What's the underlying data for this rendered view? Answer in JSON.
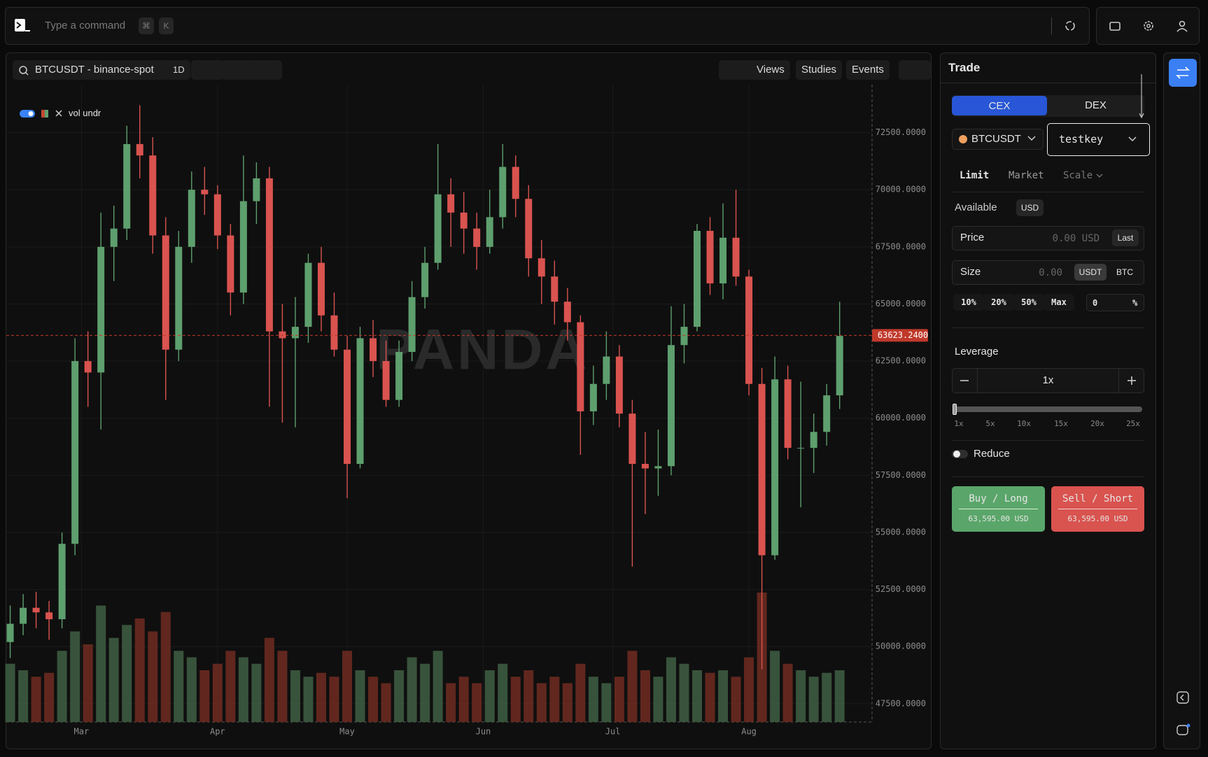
{
  "topbar": {
    "placeholder": "Type a command",
    "shortcut": [
      "⌘",
      "K"
    ]
  },
  "chart_data": {
    "type": "candlestick",
    "symbol": "BTCUSDT - binance-spot",
    "interval": "1D",
    "toolbar": [
      "Views",
      "Studies",
      "Events"
    ],
    "legend": "vol undr",
    "watermark": "PANDA",
    "up_color": "#5e9f6e",
    "down_color": "#d9534f",
    "volume_up_color": "#3d5b40",
    "volume_down_color": "#6a2a20",
    "grid": true,
    "ylim": [
      46700,
      74600
    ],
    "yticks": [
      {
        "value": 47500,
        "label": "47500.0000"
      },
      {
        "value": 50000,
        "label": "50000.0000"
      },
      {
        "value": 52500,
        "label": "52500.0000"
      },
      {
        "value": 55000,
        "label": "55000.0000"
      },
      {
        "value": 57500,
        "label": "57500.0000"
      },
      {
        "value": 60000,
        "label": "60000.0000"
      },
      {
        "value": 62500,
        "label": "62500.0000"
      },
      {
        "value": 65000,
        "label": "65000.0000"
      },
      {
        "value": 67500,
        "label": "67500.0000"
      },
      {
        "value": 70000,
        "label": "70000.0000"
      },
      {
        "value": 72500,
        "label": "72500.0000"
      }
    ],
    "xlim": [
      -0.3,
      66.5
    ],
    "xticks": [
      {
        "value": 5.5,
        "label": "Mar"
      },
      {
        "value": 16,
        "label": "Apr"
      },
      {
        "value": 26,
        "label": "May"
      },
      {
        "value": 36.5,
        "label": "Jun"
      },
      {
        "value": 46.5,
        "label": "Jul"
      },
      {
        "value": 57,
        "label": "Aug"
      }
    ],
    "price_line": {
      "value": 63623.24,
      "label": "63623.2400"
    },
    "candles": [
      [
        50200,
        51800,
        49500,
        51000
      ],
      [
        51000,
        52300,
        50500,
        51700
      ],
      [
        51700,
        52400,
        50800,
        51500
      ],
      [
        51500,
        52000,
        50300,
        51200
      ],
      [
        51200,
        55000,
        50800,
        54500
      ],
      [
        54500,
        63500,
        54000,
        62500
      ],
      [
        62500,
        63800,
        60500,
        62000
      ],
      [
        62000,
        69000,
        59500,
        67500
      ],
      [
        67500,
        69300,
        66000,
        68300
      ],
      [
        68300,
        72800,
        67800,
        72000
      ],
      [
        72000,
        73700,
        70500,
        71500
      ],
      [
        71500,
        72300,
        67200,
        68000
      ],
      [
        68000,
        68800,
        60800,
        63000
      ],
      [
        63000,
        68200,
        62500,
        67500
      ],
      [
        67500,
        70800,
        66800,
        70000
      ],
      [
        70000,
        71000,
        68900,
        69800
      ],
      [
        69800,
        70200,
        67400,
        68000
      ],
      [
        68000,
        68500,
        64500,
        65500
      ],
      [
        65500,
        71500,
        65000,
        69500
      ],
      [
        69500,
        71200,
        68500,
        70500
      ],
      [
        70500,
        71000,
        60500,
        63800
      ],
      [
        63800,
        65000,
        59800,
        63500
      ],
      [
        63500,
        65300,
        59600,
        64000
      ],
      [
        64000,
        67200,
        63300,
        66800
      ],
      [
        66800,
        67500,
        63800,
        64500
      ],
      [
        64500,
        65500,
        62700,
        63000
      ],
      [
        63000,
        63600,
        56500,
        58000
      ],
      [
        58000,
        64000,
        57800,
        63500
      ],
      [
        63500,
        64300,
        61800,
        62500
      ],
      [
        62500,
        63400,
        60500,
        60800
      ],
      [
        60800,
        63400,
        60500,
        62900
      ],
      [
        62900,
        66000,
        62500,
        65300
      ],
      [
        65300,
        67500,
        64800,
        66800
      ],
      [
        66800,
        72000,
        66500,
        69800
      ],
      [
        69800,
        70500,
        67500,
        69000
      ],
      [
        69000,
        69900,
        67200,
        68300
      ],
      [
        68300,
        69000,
        66500,
        67500
      ],
      [
        67500,
        70000,
        67200,
        68800
      ],
      [
        68800,
        72000,
        68300,
        71000
      ],
      [
        71000,
        71500,
        68800,
        69600
      ],
      [
        69600,
        70200,
        66200,
        67000
      ],
      [
        67000,
        67800,
        65000,
        66200
      ],
      [
        66200,
        66900,
        64100,
        65100
      ],
      [
        65100,
        65700,
        63400,
        64200
      ],
      [
        64200,
        64500,
        58400,
        60300
      ],
      [
        60300,
        62300,
        59700,
        61500
      ],
      [
        61500,
        63800,
        60800,
        62700
      ],
      [
        62700,
        63200,
        59600,
        60200
      ],
      [
        60200,
        60800,
        53500,
        58000
      ],
      [
        58000,
        59400,
        55800,
        57800
      ],
      [
        57800,
        59500,
        56600,
        57900
      ],
      [
        57900,
        64900,
        57500,
        63200
      ],
      [
        63200,
        65000,
        62400,
        64000
      ],
      [
        64000,
        68500,
        63800,
        68200
      ],
      [
        68200,
        68800,
        65400,
        65900
      ],
      [
        65900,
        69400,
        65200,
        67900
      ],
      [
        67900,
        70000,
        65800,
        66200
      ],
      [
        66200,
        66500,
        61000,
        61500
      ],
      [
        61500,
        62200,
        49000,
        54000
      ],
      [
        54000,
        62700,
        53800,
        61700
      ],
      [
        61700,
        62300,
        58200,
        58700
      ],
      [
        58700,
        61600,
        56100,
        58700
      ],
      [
        58700,
        60200,
        57600,
        59400
      ],
      [
        59400,
        61500,
        58800,
        61000
      ],
      [
        61000,
        65100,
        60400,
        63600
      ]
    ],
    "volume": [
      45,
      40,
      35,
      38,
      55,
      70,
      60,
      90,
      65,
      75,
      80,
      70,
      85,
      55,
      50,
      40,
      45,
      55,
      50,
      45,
      65,
      55,
      40,
      35,
      38,
      35,
      55,
      40,
      35,
      30,
      40,
      50,
      45,
      55,
      30,
      35,
      30,
      40,
      45,
      35,
      40,
      30,
      35,
      30,
      45,
      35,
      30,
      35,
      55,
      40,
      35,
      50,
      45,
      40,
      38,
      40,
      35,
      50,
      100,
      55,
      45,
      40,
      35,
      38,
      40
    ]
  },
  "trade": {
    "title": "Trade",
    "venues": [
      "CEX",
      "DEX"
    ],
    "pair": "BTCUSDT",
    "account": "testkey",
    "order_types": [
      "Limit",
      "Market",
      "Scale"
    ],
    "available_label": "Available",
    "available_currency": "USD",
    "price_label": "Price",
    "price_placeholder": "0.00 USD",
    "price_button": "Last",
    "size_label": "Size",
    "size_placeholder": "0.00",
    "size_units": [
      "USDT",
      "BTC"
    ],
    "size_presets": [
      "10%",
      "20%",
      "50%",
      "Max"
    ],
    "percent_value": "0",
    "percent_unit": "%",
    "leverage_label": "Leverage",
    "leverage_value": "1x",
    "leverage_marks": [
      "1x",
      "5x",
      "10x",
      "15x",
      "20x",
      "25x"
    ],
    "reduce_label": "Reduce",
    "buy": {
      "label": "Buy / Long",
      "price": "63,595.00 USD"
    },
    "sell": {
      "label": "Sell / Short",
      "price": "63,595.00 USD"
    }
  }
}
